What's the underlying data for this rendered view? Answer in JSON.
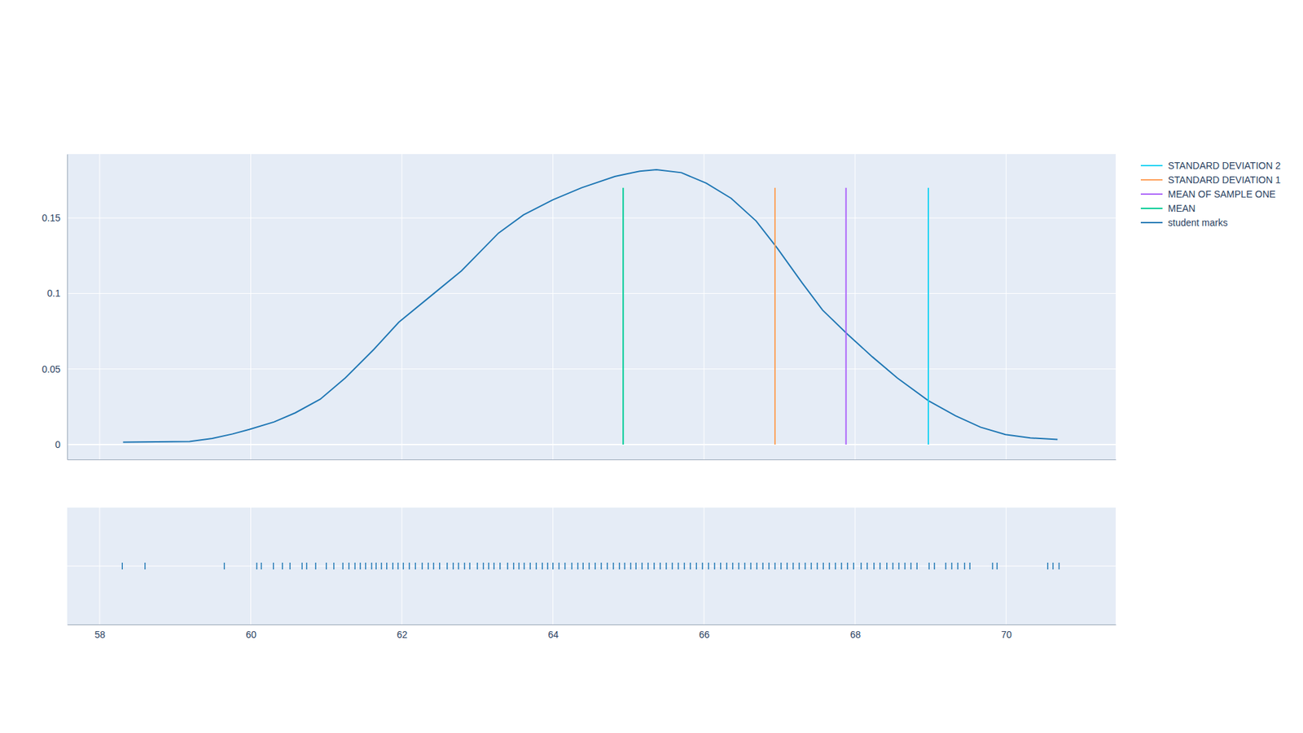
{
  "chart_data": {
    "type": "line",
    "xlim": [
      57.57,
      71.45
    ],
    "xticks": [
      58,
      60,
      62,
      64,
      66,
      68,
      70
    ],
    "ylim": [
      -0.0099,
      0.1923
    ],
    "yticks": [
      0,
      0.05,
      0.1,
      0.15
    ],
    "grid": true,
    "legend": "top-right",
    "series": [
      {
        "name": "STANDARD DEVIATION 2",
        "color": "#19d3f3",
        "type": "line",
        "x": [
          68.97,
          68.97
        ],
        "values": [
          0,
          0.17
        ]
      },
      {
        "name": "STANDARD DEVIATION 1",
        "color": "#ffa15a",
        "type": "line",
        "x": [
          66.94,
          66.94
        ],
        "values": [
          0,
          0.17
        ]
      },
      {
        "name": "MEAN OF SAMPLE ONE",
        "color": "#ab63fa",
        "type": "line",
        "x": [
          67.88,
          67.88
        ],
        "values": [
          0,
          0.17
        ]
      },
      {
        "name": "MEAN",
        "color": "#00cc96",
        "type": "line",
        "x": [
          64.93,
          64.93
        ],
        "values": [
          0,
          0.17
        ]
      },
      {
        "name": "student marks",
        "color": "#1f77b4",
        "type": "line",
        "x": [
          58.31,
          59.19,
          59.49,
          59.76,
          59.98,
          60.31,
          60.59,
          60.92,
          61.25,
          61.63,
          61.96,
          62.4,
          62.79,
          63.28,
          63.61,
          64.0,
          64.38,
          64.82,
          65.15,
          65.37,
          65.7,
          66.03,
          66.36,
          66.69,
          66.97,
          67.3,
          67.57,
          67.9,
          68.23,
          68.56,
          68.97,
          69.33,
          69.66,
          69.99,
          70.32,
          70.68
        ],
        "values": [
          0.0016,
          0.002,
          0.004,
          0.007,
          0.01,
          0.015,
          0.021,
          0.03,
          0.044,
          0.063,
          0.081,
          0.099,
          0.115,
          0.14,
          0.152,
          0.162,
          0.17,
          0.1775,
          0.181,
          0.182,
          0.18,
          0.173,
          0.163,
          0.148,
          0.13,
          0.107,
          0.089,
          0.073,
          0.058,
          0.044,
          0.029,
          0.019,
          0.0115,
          0.0066,
          0.0044,
          0.0033
        ],
        "rug": [
          58.3,
          58.6,
          59.65,
          60.08,
          60.14,
          60.3,
          60.42,
          60.52,
          60.68,
          60.74,
          60.86,
          61.0,
          61.1,
          61.22,
          61.3,
          61.38,
          61.45,
          61.52,
          61.6,
          61.66,
          61.73,
          61.8,
          61.88,
          61.95,
          62.02,
          62.1,
          62.18,
          62.27,
          62.35,
          62.42,
          62.5,
          62.6,
          62.68,
          62.75,
          62.83,
          62.9,
          63.0,
          63.08,
          63.15,
          63.22,
          63.3,
          63.4,
          63.48,
          63.55,
          63.62,
          63.7,
          63.78,
          63.86,
          63.93,
          64.0,
          64.08,
          64.16,
          64.25,
          64.33,
          64.4,
          64.48,
          64.56,
          64.64,
          64.72,
          64.8,
          64.88,
          64.95,
          65.03,
          65.1,
          65.18,
          65.26,
          65.34,
          65.42,
          65.5,
          65.58,
          65.66,
          65.74,
          65.82,
          65.9,
          65.98,
          66.06,
          66.14,
          66.22,
          66.3,
          66.38,
          66.46,
          66.54,
          66.62,
          66.7,
          66.78,
          66.86,
          66.94,
          67.02,
          67.1,
          67.18,
          67.26,
          67.34,
          67.42,
          67.5,
          67.58,
          67.66,
          67.74,
          67.82,
          67.9,
          67.98,
          68.08,
          68.16,
          68.25,
          68.33,
          68.42,
          68.5,
          68.58,
          68.66,
          68.74,
          68.82,
          68.98,
          69.05,
          69.2,
          69.28,
          69.36,
          69.45,
          69.52,
          69.82,
          69.88,
          70.55,
          70.62,
          70.7
        ]
      }
    ]
  }
}
